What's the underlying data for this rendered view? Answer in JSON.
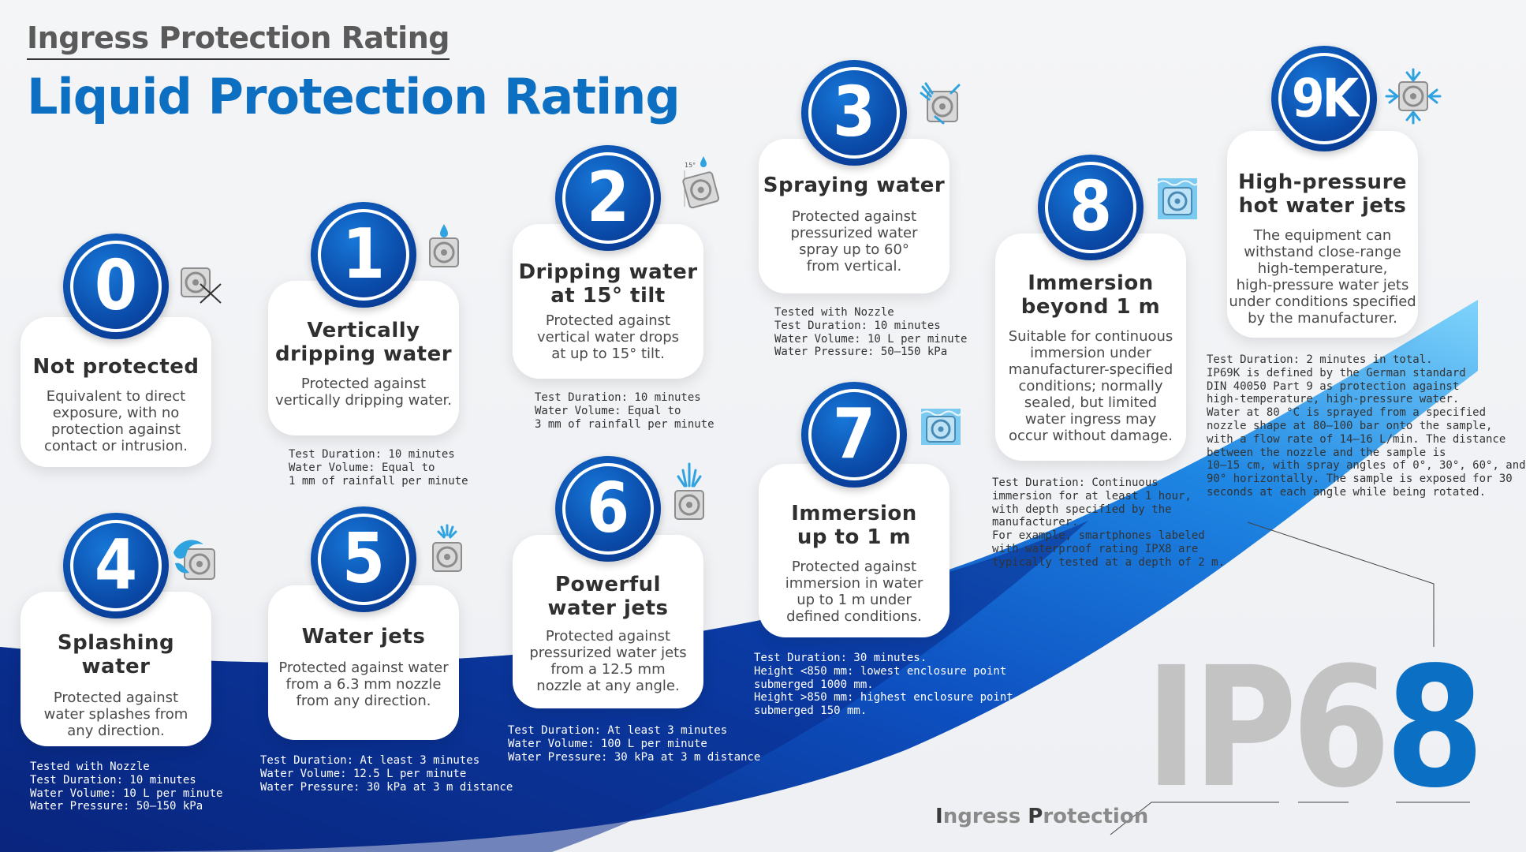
{
  "header": {
    "subtitle": "Ingress Protection Rating",
    "title": "Liquid Protection Rating"
  },
  "colors": {
    "brand_blue": "#0d6fc2",
    "badge_blue": "#0a4aa8",
    "wave_dark": "#0a1f6e",
    "wave_light": "#58c3f6",
    "card_bg": "#ffffff"
  },
  "levels": [
    {
      "number": "0",
      "title_lines": [
        "Not protected"
      ],
      "desc_lines": [
        "Equivalent to direct",
        "exposure, with no",
        "protection against",
        "contact or intrusion."
      ],
      "test_lines": [],
      "icon": "device-x-icon"
    },
    {
      "number": "1",
      "title_lines": [
        "Vertically",
        "dripping water"
      ],
      "desc_lines": [
        "Protected against",
        "vertically dripping water."
      ],
      "test_lines": [
        "Test Duration: 10 minutes",
        "Water Volume: Equal to",
        "1 mm of rainfall per minute"
      ],
      "icon": "device-drip-icon"
    },
    {
      "number": "2",
      "title_lines": [
        "Dripping water",
        "at 15° tilt"
      ],
      "desc_lines": [
        "Protected against",
        "vertical water drops",
        "at up to 15° tilt."
      ],
      "test_lines": [
        "Test Duration: 10 minutes",
        "Water Volume: Equal to",
        "3 mm of rainfall per minute"
      ],
      "icon": "device-tilt-drip-icon",
      "icon_label": "15°"
    },
    {
      "number": "3",
      "title_lines": [
        "Spraying water"
      ],
      "desc_lines": [
        "Protected against",
        "pressurized water",
        "spray up to 60°",
        "from vertical."
      ],
      "test_lines": [
        "Tested with Nozzle",
        "Test Duration: 10 minutes",
        "Water Volume: 10 L per minute",
        "Water Pressure: 50–150 kPa"
      ],
      "icon": "device-spray-icon"
    },
    {
      "number": "4",
      "title_lines": [
        "Splashing water"
      ],
      "desc_lines": [
        "Protected against",
        "water splashes from",
        "any direction."
      ],
      "test_lines": [
        "Tested with Nozzle",
        "Test Duration: 10 minutes",
        "Water Volume: 10 L per minute",
        "Water Pressure: 50–150 kPa"
      ],
      "icon": "device-splash-icon"
    },
    {
      "number": "5",
      "title_lines": [
        "Water jets"
      ],
      "desc_lines": [
        "Protected against water",
        "from a 6.3 mm nozzle",
        "from any direction."
      ],
      "test_lines": [
        "Test Duration: At least 3 minutes",
        "Water Volume: 12.5 L per minute",
        "Water Pressure: 30 kPa at 3 m distance"
      ],
      "icon": "device-jet-icon"
    },
    {
      "number": "6",
      "title_lines": [
        "Powerful",
        "water jets"
      ],
      "desc_lines": [
        "Protected against",
        "pressurized water jets",
        "from a 12.5 mm",
        "nozzle at any angle."
      ],
      "test_lines": [
        "Test Duration: At least 3 minutes",
        "Water Volume: 100 L per minute",
        "Water Pressure: 30 kPa at 3 m distance"
      ],
      "icon": "device-powerful-jet-icon"
    },
    {
      "number": "7",
      "title_lines": [
        "Immersion",
        "up to 1 m"
      ],
      "desc_lines": [
        "Protected against",
        "immersion in water",
        "up to 1 m under",
        "defined conditions."
      ],
      "test_lines": [
        "Test Duration: 30 minutes.",
        "Height <850 mm: lowest enclosure point",
        "submerged 1000 mm.",
        "Height >850 mm: highest enclosure point",
        "submerged 150 mm."
      ],
      "icon": "device-immersion-icon"
    },
    {
      "number": "8",
      "title_lines": [
        "Immersion",
        "beyond 1 m"
      ],
      "desc_lines": [
        "Suitable for continuous",
        "immersion under",
        "manufacturer-specified",
        "conditions; normally",
        "sealed, but limited",
        "water ingress may",
        "occur without damage."
      ],
      "test_lines": [
        "Test Duration: Continuous",
        "immersion for at least 1 hour,",
        "with depth specified by the",
        "manufacturer.",
        "For example, smartphones labeled",
        "with waterproof rating IPX8 are",
        "typically tested at a depth of 2 m."
      ],
      "icon": "device-deep-immersion-icon"
    },
    {
      "number": "9K",
      "title_lines": [
        "High-pressure",
        "hot water jets"
      ],
      "desc_lines": [
        "The equipment can",
        "withstand close-range",
        "high-temperature,",
        "high-pressure water jets",
        "under conditions specified",
        "by the manufacturer."
      ],
      "test_lines": [
        "Test Duration: 2 minutes in total.",
        "IP69K is defined by the German standard",
        "DIN 40050 Part 9 as protection against",
        "high-temperature, high-pressure water.",
        "Water at 80 °C is sprayed from a specified",
        "nozzle shape at 80–100 bar onto the sample,",
        "with a flow rate of 14–16 L/min. The distance",
        "between the nozzle and the sample is",
        "10–15 cm, with spray angles of 0°, 30°, 60°, and",
        "90° horizontally. The sample is exposed for 30",
        "seconds at each angle while being rotated."
      ],
      "icon": "device-high-pressure-icon"
    }
  ],
  "ip_example": {
    "prefix": "IP6",
    "digit": "8",
    "caption_parts": [
      "I",
      "ngress ",
      "P",
      "rotection"
    ]
  }
}
